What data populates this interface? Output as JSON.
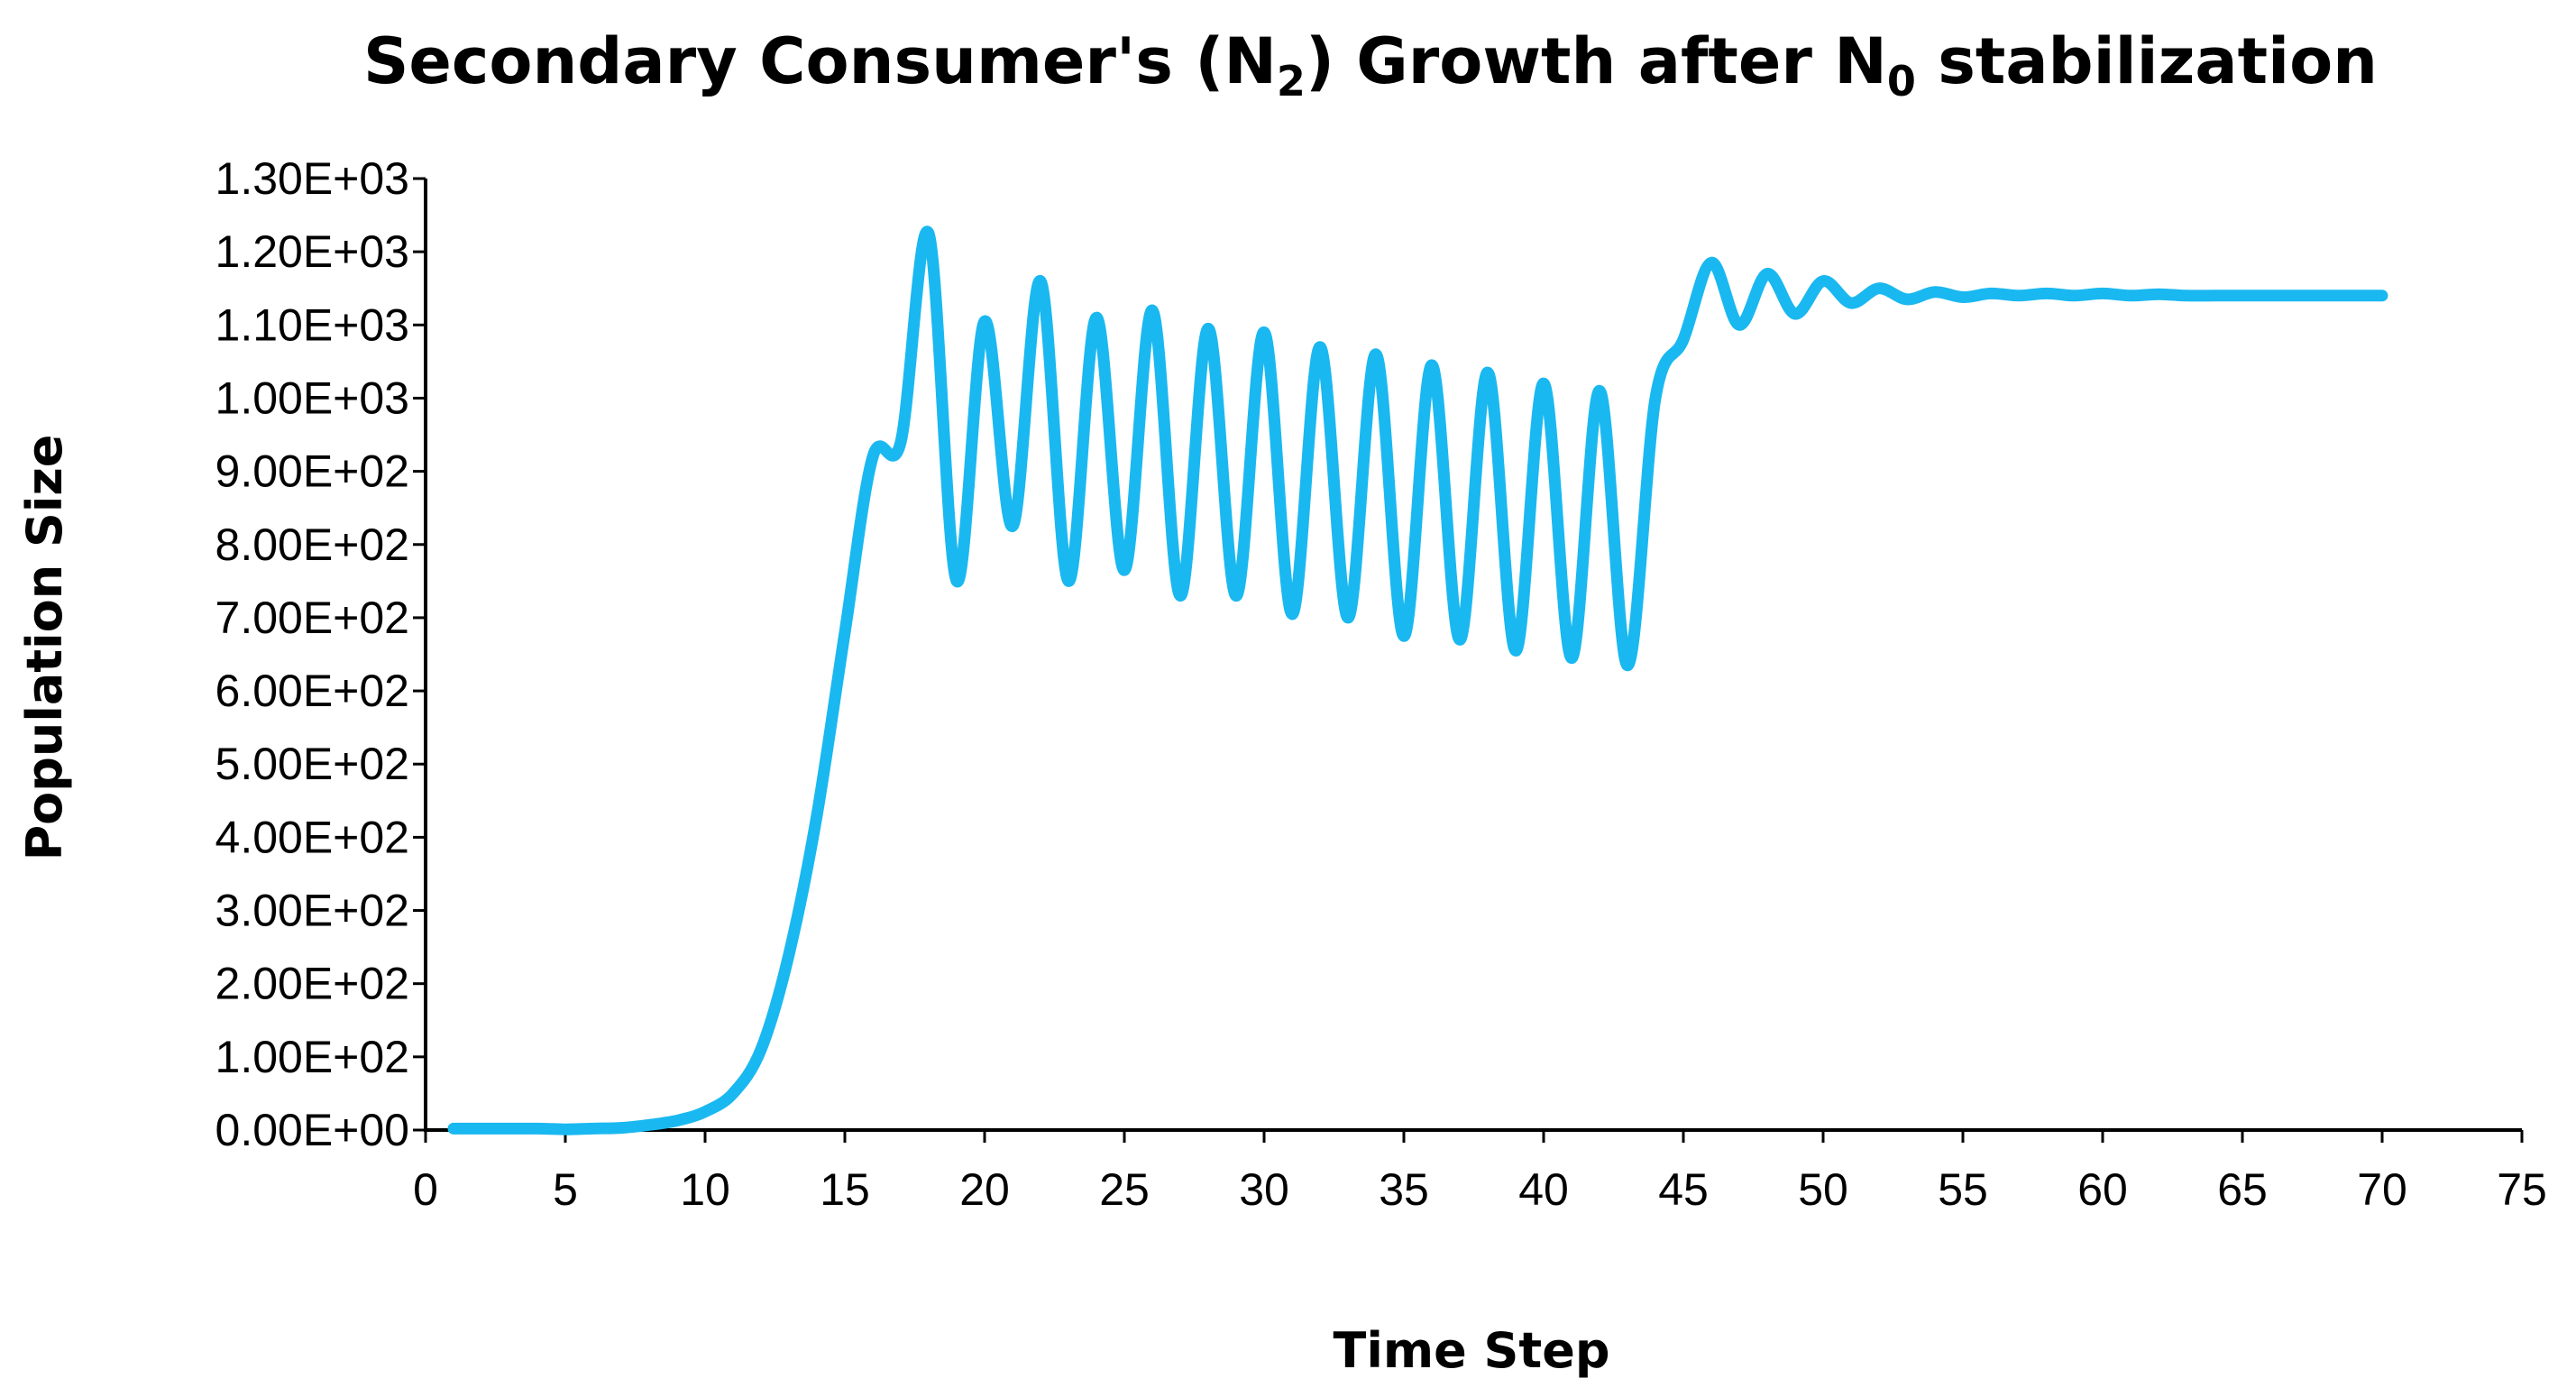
{
  "chart_data": {
    "type": "line",
    "title": {
      "prefix": "Secondary Consumer's (N",
      "sub1": "2",
      "middle": ") Growth after N",
      "sub2": "0",
      "suffix": " stabilization"
    },
    "xlabel": "Time Step",
    "ylabel": "Population Size",
    "xlim": [
      0,
      75
    ],
    "ylim": [
      0,
      1300
    ],
    "xticks": [
      0,
      5,
      10,
      15,
      20,
      25,
      30,
      35,
      40,
      45,
      50,
      55,
      60,
      65,
      70,
      75
    ],
    "xtick_labels": [
      "0",
      "5",
      "10",
      "15",
      "20",
      "25",
      "30",
      "35",
      "40",
      "45",
      "50",
      "55",
      "60",
      "65",
      "70",
      "75"
    ],
    "yticks": [
      0,
      100,
      200,
      300,
      400,
      500,
      600,
      700,
      800,
      900,
      1000,
      1100,
      1200,
      1300
    ],
    "ytick_labels": [
      "0.00E+00",
      "1.00E+02",
      "2.00E+02",
      "3.00E+02",
      "4.00E+02",
      "5.00E+02",
      "6.00E+02",
      "7.00E+02",
      "8.00E+02",
      "9.00E+02",
      "1.00E+03",
      "1.10E+03",
      "1.20E+03",
      "1.30E+03"
    ],
    "grid": false,
    "series": [
      {
        "name": "N2",
        "color": "#1ab8f0",
        "x": [
          1,
          2,
          3,
          4,
          5,
          6,
          7,
          8,
          9,
          10,
          11,
          12,
          13,
          14,
          15,
          16,
          17,
          18,
          19,
          20,
          21,
          22,
          23,
          24,
          25,
          26,
          27,
          28,
          29,
          30,
          31,
          32,
          33,
          34,
          35,
          36,
          37,
          38,
          39,
          40,
          41,
          42,
          43,
          44,
          45,
          46,
          47,
          48,
          49,
          50,
          51,
          52,
          53,
          54,
          55,
          56,
          57,
          58,
          59,
          60,
          61,
          62,
          63,
          64,
          65,
          66,
          67,
          68,
          69,
          70
        ],
        "values": [
          2,
          2,
          2,
          2,
          1,
          2,
          3,
          7,
          13,
          25,
          50,
          110,
          240,
          430,
          680,
          920,
          940,
          1225,
          750,
          1105,
          825,
          1160,
          750,
          1110,
          765,
          1120,
          730,
          1095,
          730,
          1090,
          705,
          1070,
          700,
          1060,
          675,
          1045,
          670,
          1035,
          655,
          1020,
          645,
          1010,
          635,
          1000,
          1080,
          1185,
          1100,
          1170,
          1115,
          1160,
          1130,
          1150,
          1135,
          1145,
          1138,
          1143,
          1140,
          1143,
          1140,
          1143,
          1140,
          1142,
          1140,
          1140,
          1140,
          1140,
          1140,
          1140,
          1140,
          1140
        ]
      }
    ]
  }
}
